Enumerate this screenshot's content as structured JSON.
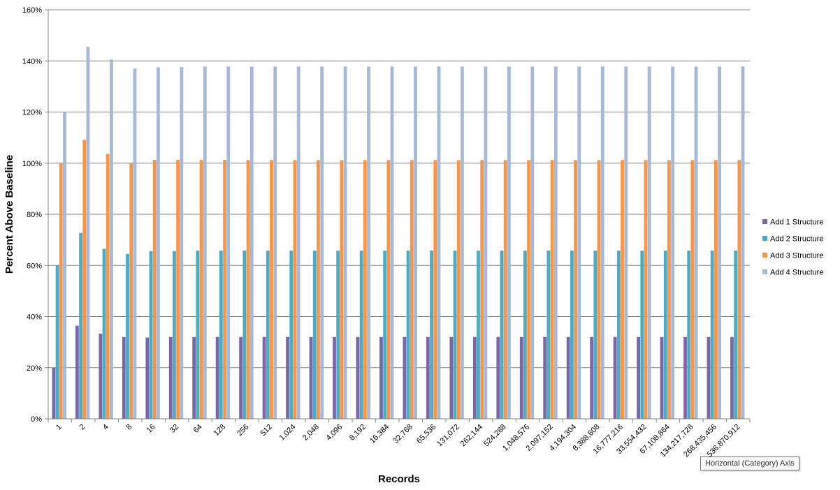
{
  "chart_data": {
    "type": "bar",
    "xlabel": "Records",
    "ylabel": "Percent Above Baseline",
    "ylim": [
      0,
      1.6
    ],
    "y_ticks": [
      "0%",
      "20%",
      "40%",
      "60%",
      "80%",
      "100%",
      "120%",
      "140%",
      "160%"
    ],
    "grid": true,
    "legend_position": "right",
    "categories": [
      "1",
      "2",
      "4",
      "8",
      "16",
      "32",
      "64",
      "128",
      "256",
      "512",
      "1,024",
      "2,048",
      "4,096",
      "8,192",
      "16,384",
      "32,768",
      "65,536",
      "131,072",
      "262,144",
      "524,288",
      "1,048,576",
      "2,097,152",
      "4,194,304",
      "8,388,608",
      "16,777,216",
      "33,554,432",
      "67,108,864",
      "134,217,728",
      "268,435,456",
      "536,870,912"
    ],
    "series": [
      {
        "name": "Add 1 Structure",
        "color": "#7b66a6",
        "values": [
          0.2,
          0.364,
          0.333,
          0.32,
          0.318,
          0.32,
          0.32,
          0.32,
          0.32,
          0.32,
          0.32,
          0.32,
          0.32,
          0.32,
          0.32,
          0.32,
          0.32,
          0.32,
          0.32,
          0.32,
          0.32,
          0.32,
          0.32,
          0.32,
          0.32,
          0.32,
          0.32,
          0.32,
          0.32,
          0.32
        ]
      },
      {
        "name": "Add 2 Structure",
        "color": "#4bacc6",
        "values": [
          0.6,
          0.727,
          0.665,
          0.645,
          0.656,
          0.656,
          0.658,
          0.658,
          0.658,
          0.658,
          0.658,
          0.658,
          0.658,
          0.658,
          0.658,
          0.658,
          0.658,
          0.658,
          0.658,
          0.658,
          0.658,
          0.658,
          0.658,
          0.658,
          0.658,
          0.658,
          0.658,
          0.658,
          0.658,
          0.658
        ]
      },
      {
        "name": "Add 3 Structure",
        "color": "#f79646",
        "values": [
          1.0,
          1.091,
          1.036,
          1.0,
          1.013,
          1.013,
          1.013,
          1.013,
          1.012,
          1.012,
          1.012,
          1.012,
          1.012,
          1.012,
          1.012,
          1.012,
          1.012,
          1.012,
          1.012,
          1.012,
          1.012,
          1.012,
          1.012,
          1.012,
          1.012,
          1.012,
          1.012,
          1.012,
          1.012,
          1.012
        ]
      },
      {
        "name": "Add 4 Structure",
        "color": "#a7b9d8",
        "values": [
          1.2,
          1.455,
          1.405,
          1.37,
          1.375,
          1.376,
          1.378,
          1.378,
          1.378,
          1.378,
          1.378,
          1.378,
          1.378,
          1.378,
          1.378,
          1.378,
          1.378,
          1.378,
          1.378,
          1.378,
          1.378,
          1.378,
          1.378,
          1.378,
          1.378,
          1.378,
          1.378,
          1.378,
          1.378,
          1.378
        ]
      }
    ]
  },
  "tooltip": {
    "text": "Horizontal (Category) Axis"
  }
}
